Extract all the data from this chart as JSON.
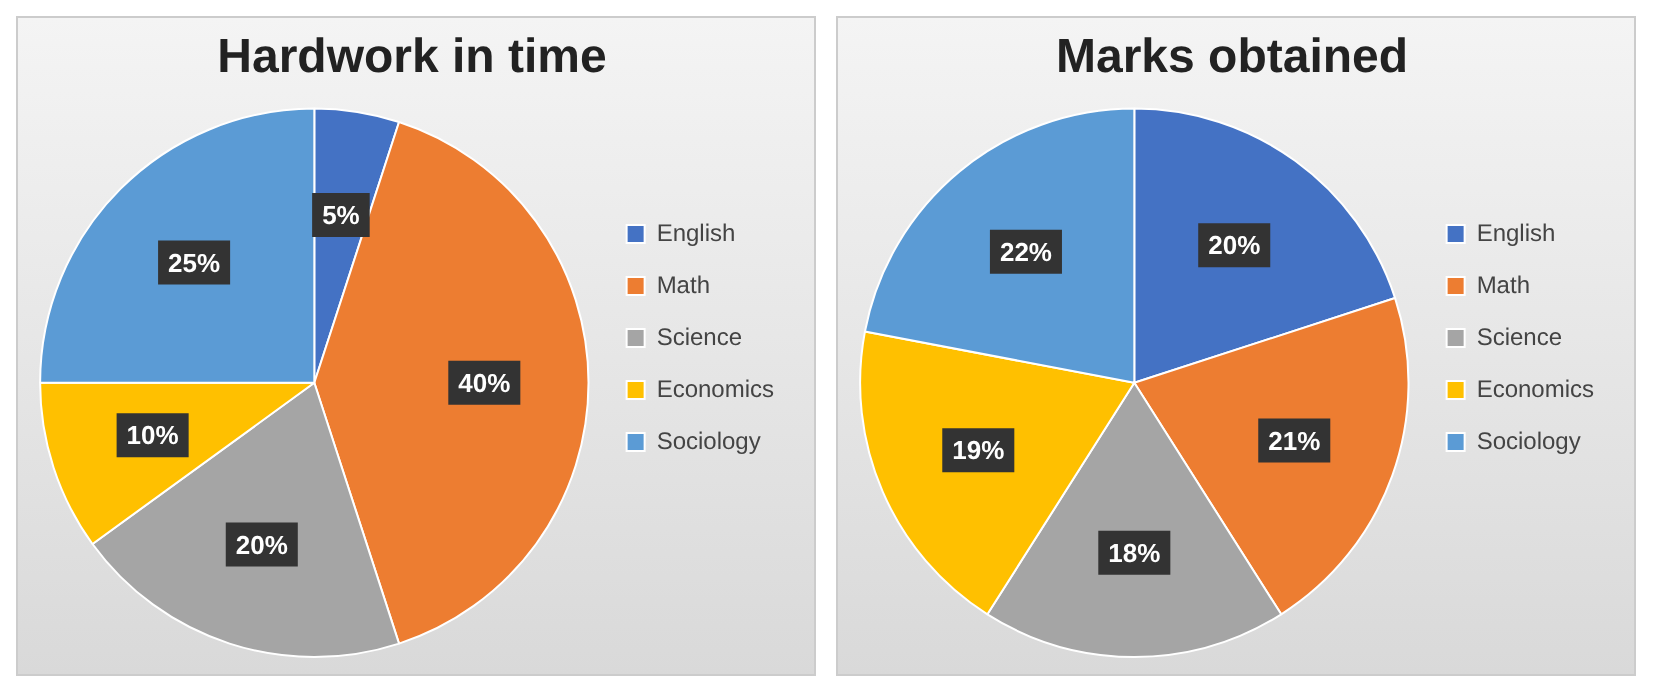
{
  "chart_data": [
    {
      "type": "pie",
      "title": "Hardwork in time",
      "categories": [
        "English",
        "Math",
        "Science",
        "Economics",
        "Sociology"
      ],
      "values": [
        5,
        40,
        20,
        10,
        25
      ],
      "colors": [
        "#4472c4",
        "#ed7d31",
        "#a5a5a5",
        "#ffc000",
        "#5b9bd5"
      ],
      "value_labels": [
        "5%",
        "40%",
        "20%",
        "10%",
        "25%"
      ],
      "legend": "right"
    },
    {
      "type": "pie",
      "title": "Marks obtained",
      "categories": [
        "English",
        "Math",
        "Science",
        "Economics",
        "Sociology"
      ],
      "values": [
        20,
        21,
        18,
        19,
        22
      ],
      "colors": [
        "#4472c4",
        "#ed7d31",
        "#a5a5a5",
        "#ffc000",
        "#5b9bd5"
      ],
      "value_labels": [
        "20%",
        "21%",
        "18%",
        "19%",
        "22%"
      ],
      "legend": "right"
    }
  ]
}
